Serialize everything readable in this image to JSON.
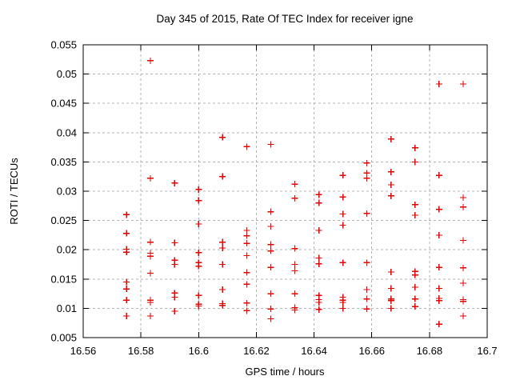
{
  "window": {
    "background_color": "#ffffff",
    "text_color": "#000000"
  },
  "chart_data": {
    "type": "scatter",
    "title": "Day 345 of 2015, Rate Of TEC Index for receiver igne",
    "xlabel": "GPS time / hours",
    "ylabel": "ROTI / TECUs",
    "xlim": [
      16.56,
      16.7
    ],
    "ylim": [
      0.005,
      0.055
    ],
    "xticks": [
      16.56,
      16.58,
      16.6,
      16.62,
      16.64,
      16.66,
      16.68,
      16.7
    ],
    "xtick_labels": [
      "16.56",
      "16.58",
      "16.6",
      "16.62",
      "16.64",
      "16.66",
      "16.68",
      "16.7"
    ],
    "yticks": [
      0.005,
      0.01,
      0.015,
      0.02,
      0.025,
      0.03,
      0.035,
      0.04,
      0.045,
      0.05,
      0.055
    ],
    "ytick_labels": [
      "0.005",
      "0.01",
      "0.015",
      "0.02",
      "0.025",
      "0.03",
      "0.035",
      "0.04",
      "0.045",
      "0.05",
      "0.055"
    ],
    "grid": true,
    "grid_color": "#b3b3b3",
    "border_color": "#000000",
    "legend_position": "none",
    "marker": {
      "shape": "plus",
      "color": "#e60000",
      "size": 4
    },
    "series": [
      {
        "name": "ROTI",
        "points": [
          [
            16.575,
            0.026
          ],
          [
            16.575,
            0.0228
          ],
          [
            16.575,
            0.0201
          ],
          [
            16.575,
            0.0196
          ],
          [
            16.575,
            0.0145
          ],
          [
            16.575,
            0.0133
          ],
          [
            16.575,
            0.0114
          ],
          [
            16.575,
            0.0087
          ],
          [
            16.5833,
            0.0523
          ],
          [
            16.5833,
            0.0322
          ],
          [
            16.5833,
            0.0213
          ],
          [
            16.5833,
            0.0194
          ],
          [
            16.5833,
            0.0189
          ],
          [
            16.5833,
            0.016
          ],
          [
            16.5833,
            0.0114
          ],
          [
            16.5833,
            0.011
          ],
          [
            16.5833,
            0.0087
          ],
          [
            16.5917,
            0.0314
          ],
          [
            16.5917,
            0.0212
          ],
          [
            16.5917,
            0.0182
          ],
          [
            16.5917,
            0.0175
          ],
          [
            16.5917,
            0.0126
          ],
          [
            16.5917,
            0.0119
          ],
          [
            16.5917,
            0.0095
          ],
          [
            16.6,
            0.0303
          ],
          [
            16.6,
            0.0284
          ],
          [
            16.6,
            0.0244
          ],
          [
            16.6,
            0.0195
          ],
          [
            16.6,
            0.0178
          ],
          [
            16.6,
            0.0172
          ],
          [
            16.6,
            0.0122
          ],
          [
            16.6,
            0.0107
          ],
          [
            16.6,
            0.0104
          ],
          [
            16.6083,
            0.0392
          ],
          [
            16.6083,
            0.0325
          ],
          [
            16.6083,
            0.0213
          ],
          [
            16.6083,
            0.0203
          ],
          [
            16.6083,
            0.0175
          ],
          [
            16.6083,
            0.0132
          ],
          [
            16.6083,
            0.0108
          ],
          [
            16.6083,
            0.0105
          ],
          [
            16.6167,
            0.0376
          ],
          [
            16.6167,
            0.0233
          ],
          [
            16.6167,
            0.0224
          ],
          [
            16.6167,
            0.0211
          ],
          [
            16.6167,
            0.019
          ],
          [
            16.6167,
            0.0161
          ],
          [
            16.6167,
            0.0141
          ],
          [
            16.6167,
            0.0109
          ],
          [
            16.6167,
            0.0096
          ],
          [
            16.625,
            0.038
          ],
          [
            16.625,
            0.0265
          ],
          [
            16.625,
            0.024
          ],
          [
            16.625,
            0.0209
          ],
          [
            16.625,
            0.0198
          ],
          [
            16.625,
            0.017
          ],
          [
            16.625,
            0.0125
          ],
          [
            16.625,
            0.0099
          ],
          [
            16.625,
            0.0082
          ],
          [
            16.6333,
            0.0312
          ],
          [
            16.6333,
            0.0288
          ],
          [
            16.6333,
            0.0202
          ],
          [
            16.6333,
            0.0175
          ],
          [
            16.6333,
            0.0164
          ],
          [
            16.6333,
            0.0125
          ],
          [
            16.6333,
            0.0101
          ],
          [
            16.6333,
            0.0097
          ],
          [
            16.6417,
            0.0294
          ],
          [
            16.6417,
            0.028
          ],
          [
            16.6417,
            0.0233
          ],
          [
            16.6417,
            0.0186
          ],
          [
            16.6417,
            0.0176
          ],
          [
            16.6417,
            0.0122
          ],
          [
            16.6417,
            0.0115
          ],
          [
            16.6417,
            0.011
          ],
          [
            16.6417,
            0.0098
          ],
          [
            16.65,
            0.0327
          ],
          [
            16.65,
            0.029
          ],
          [
            16.65,
            0.0261
          ],
          [
            16.65,
            0.0242
          ],
          [
            16.65,
            0.0178
          ],
          [
            16.65,
            0.0119
          ],
          [
            16.65,
            0.0114
          ],
          [
            16.65,
            0.011
          ],
          [
            16.65,
            0.01
          ],
          [
            16.6583,
            0.0348
          ],
          [
            16.6583,
            0.0331
          ],
          [
            16.6583,
            0.0322
          ],
          [
            16.6583,
            0.0262
          ],
          [
            16.6583,
            0.0178
          ],
          [
            16.6583,
            0.0132
          ],
          [
            16.6583,
            0.0116
          ],
          [
            16.6583,
            0.0099
          ],
          [
            16.6667,
            0.0389
          ],
          [
            16.6667,
            0.0333
          ],
          [
            16.6667,
            0.0311
          ],
          [
            16.6667,
            0.0292
          ],
          [
            16.6667,
            0.0162
          ],
          [
            16.6667,
            0.0134
          ],
          [
            16.6667,
            0.0116
          ],
          [
            16.6667,
            0.0113
          ],
          [
            16.6667,
            0.01
          ],
          [
            16.675,
            0.0374
          ],
          [
            16.675,
            0.035
          ],
          [
            16.675,
            0.0277
          ],
          [
            16.675,
            0.0259
          ],
          [
            16.675,
            0.0163
          ],
          [
            16.675,
            0.0157
          ],
          [
            16.675,
            0.0136
          ],
          [
            16.675,
            0.0116
          ],
          [
            16.675,
            0.0103
          ],
          [
            16.6833,
            0.0483
          ],
          [
            16.6833,
            0.0327
          ],
          [
            16.6833,
            0.0269
          ],
          [
            16.6833,
            0.0225
          ],
          [
            16.6833,
            0.017
          ],
          [
            16.6833,
            0.0134
          ],
          [
            16.6833,
            0.0117
          ],
          [
            16.6833,
            0.0113
          ],
          [
            16.6833,
            0.0073
          ],
          [
            16.6917,
            0.0483
          ],
          [
            16.6917,
            0.0289
          ],
          [
            16.6917,
            0.0273
          ],
          [
            16.6917,
            0.0216
          ],
          [
            16.6917,
            0.0169
          ],
          [
            16.6917,
            0.0143
          ],
          [
            16.6917,
            0.0115
          ],
          [
            16.6917,
            0.0112
          ],
          [
            16.6917,
            0.0087
          ]
        ]
      }
    ]
  }
}
